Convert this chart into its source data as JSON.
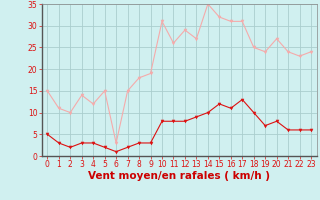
{
  "x": [
    0,
    1,
    2,
    3,
    4,
    5,
    6,
    7,
    8,
    9,
    10,
    11,
    12,
    13,
    14,
    15,
    16,
    17,
    18,
    19,
    20,
    21,
    22,
    23
  ],
  "wind_avg": [
    5,
    3,
    2,
    3,
    3,
    2,
    1,
    2,
    3,
    3,
    8,
    8,
    8,
    9,
    10,
    12,
    11,
    13,
    10,
    7,
    8,
    6,
    6,
    6
  ],
  "wind_gust": [
    15,
    11,
    10,
    14,
    12,
    15,
    3,
    15,
    18,
    19,
    31,
    26,
    29,
    27,
    35,
    32,
    31,
    31,
    25,
    24,
    27,
    24,
    23,
    24
  ],
  "avg_color": "#dd1111",
  "gust_color": "#f5aaaa",
  "bg_color": "#d0f0f0",
  "grid_color": "#aacece",
  "xlabel": "Vent moyen/en rafales ( km/h )",
  "xlabel_color": "#cc0000",
  "xlabel_fontsize": 7.5,
  "ylim": [
    0,
    35
  ],
  "yticks": [
    0,
    5,
    10,
    15,
    20,
    25,
    30,
    35
  ],
  "xtick_labels": [
    "0",
    "1",
    "2",
    "3",
    "4",
    "5",
    "6",
    "7",
    "8",
    "9",
    "10",
    "11",
    "12",
    "13",
    "14",
    "15",
    "16",
    "17",
    "18",
    "19",
    "20",
    "21",
    "22",
    "23"
  ],
  "tick_fontsize": 5.5,
  "marker_size": 2.2,
  "linewidth": 0.8
}
